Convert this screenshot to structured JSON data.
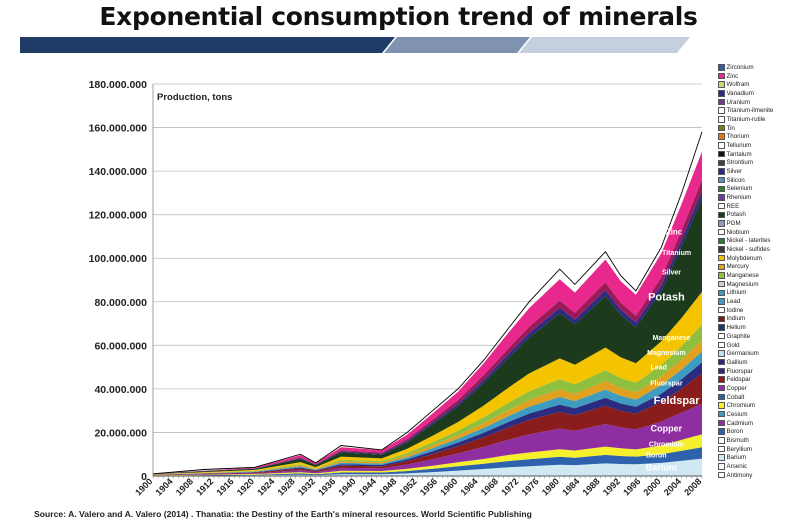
{
  "page_title": "Exponential consumption trend of minerals",
  "source_text": "Source: A. Valero and A. Valero (2014) . Thanatia: the Destiny of the Earth's mineral resources. World Scientific Publishing",
  "banner_colors": [
    "#1f3b66",
    "#7f93b0",
    "#c5d0df"
  ],
  "chart_data": {
    "type": "area",
    "stacked": true,
    "ylabel": "Production, tons",
    "ylim": [
      0,
      180000000
    ],
    "yticks": [
      0,
      20000000,
      40000000,
      60000000,
      80000000,
      100000000,
      120000000,
      140000000,
      160000000,
      180000000
    ],
    "ytick_labels": [
      "0",
      "20.000.000",
      "40.000.000",
      "60.000.000",
      "80.000.000",
      "100.000.000",
      "120.000.000",
      "140.000.000",
      "160.000.000",
      "180.000.000"
    ],
    "xlim": [
      1900,
      2008
    ],
    "xticks": [
      1900,
      1904,
      1908,
      1912,
      1916,
      1920,
      1924,
      1928,
      1932,
      1936,
      1940,
      1944,
      1948,
      1952,
      1956,
      1960,
      1964,
      1968,
      1972,
      1976,
      1980,
      1984,
      1988,
      1992,
      1996,
      2000,
      2004,
      2008
    ],
    "grid": "horizontal",
    "legend_position": "right",
    "x": [
      1900,
      1910,
      1920,
      1929,
      1932,
      1937,
      1945,
      1950,
      1955,
      1960,
      1965,
      1970,
      1974,
      1980,
      1983,
      1989,
      1992,
      1995,
      2000,
      2004,
      2008
    ],
    "total": [
      1000000,
      3000000,
      4000000,
      10000000,
      6000000,
      14000000,
      12000000,
      20000000,
      30000000,
      40000000,
      53000000,
      68000000,
      80000000,
      95000000,
      88000000,
      103000000,
      92000000,
      85000000,
      105000000,
      130000000,
      158000000
    ],
    "series": [
      {
        "name": "Barium",
        "color": "#cfe8f2",
        "values": [
          100000,
          200000,
          300000,
          600000,
          400000,
          800000,
          800000,
          1200000,
          1800000,
          2500000,
          3200000,
          4000000,
          4500000,
          5200000,
          5000000,
          5800000,
          5500000,
          5400000,
          6000000,
          7000000,
          8000000
        ]
      },
      {
        "name": "Boron",
        "color": "#2e62ad",
        "values": [
          100000,
          200000,
          300000,
          600000,
          400000,
          800000,
          800000,
          1100000,
          1500000,
          2000000,
          2400000,
          2900000,
          3200000,
          3600000,
          3400000,
          3900000,
          3700000,
          3500000,
          4000000,
          4600000,
          5200000
        ]
      },
      {
        "name": "Chromium",
        "color": "#f6ef2c",
        "values": [
          100000,
          200000,
          300000,
          600000,
          400000,
          800000,
          700000,
          1000000,
          1400000,
          1800000,
          2200000,
          2800000,
          3100000,
          3500000,
          3300000,
          3800000,
          3500000,
          3300000,
          4000000,
          5000000,
          6000000
        ]
      },
      {
        "name": "Copper",
        "color": "#8e2ea0",
        "values": [
          100000,
          300000,
          400000,
          900000,
          600000,
          1300000,
          1200000,
          2000000,
          3000000,
          4100000,
          5500000,
          7000000,
          8300000,
          9500000,
          9000000,
          10400000,
          9600000,
          9200000,
          11000000,
          12500000,
          14000000
        ]
      },
      {
        "name": "Feldspar",
        "color": "#8a1c1c",
        "values": [
          100000,
          200000,
          300000,
          700000,
          500000,
          1000000,
          1000000,
          1500000,
          2400000,
          3300000,
          4400000,
          5600000,
          6600000,
          7600000,
          7200000,
          8300000,
          7600000,
          7200000,
          9000000,
          11000000,
          14000000
        ]
      },
      {
        "name": "Fluorspar",
        "color": "#2b2b80",
        "values": [
          50000,
          100000,
          200000,
          500000,
          300000,
          700000,
          600000,
          900000,
          1300000,
          1700000,
          2100000,
          2600000,
          3000000,
          3400000,
          3200000,
          3700000,
          3400000,
          3200000,
          3800000,
          4400000,
          5000000
        ]
      },
      {
        "name": "Lead",
        "color": "#3d9cc0",
        "values": [
          50000,
          100000,
          200000,
          500000,
          300000,
          700000,
          600000,
          900000,
          1300000,
          1700000,
          2200000,
          2700000,
          3100000,
          3500000,
          3300000,
          3800000,
          3500000,
          3300000,
          3900000,
          4400000,
          5000000
        ]
      },
      {
        "name": "Magnesium",
        "color": "#e0a020",
        "values": [
          50000,
          100000,
          200000,
          500000,
          300000,
          700000,
          600000,
          900000,
          1300000,
          1700000,
          2200000,
          2700000,
          3100000,
          3600000,
          3400000,
          3900000,
          3600000,
          3400000,
          4000000,
          4600000,
          5200000
        ]
      },
      {
        "name": "Manganese",
        "color": "#8fbf3f",
        "values": [
          50000,
          100000,
          200000,
          500000,
          300000,
          700000,
          600000,
          1000000,
          1500000,
          2000000,
          2700000,
          3400000,
          4000000,
          4600000,
          4300000,
          5000000,
          4600000,
          4300000,
          5200000,
          6200000,
          7200000
        ]
      },
      {
        "name": "Molybdenum",
        "color": "#f5c400",
        "values": [
          100000,
          300000,
          400000,
          1000000,
          600000,
          1400000,
          1200000,
          2000000,
          3000000,
          4000000,
          5400000,
          7000000,
          8200000,
          9500000,
          9000000,
          10400000,
          9500000,
          9000000,
          11000000,
          13000000,
          15000000
        ]
      },
      {
        "name": "Potash",
        "color": "#1c3a1c",
        "values": [
          100000,
          400000,
          500000,
          1500000,
          900000,
          2000000,
          1700000,
          3000000,
          5200000,
          7200000,
          10200000,
          13700000,
          16400000,
          20800000,
          18500000,
          23800000,
          19500000,
          16500000,
          23000000,
          33000000,
          43000000
        ]
      },
      {
        "name": "Silver",
        "color": "#2b2b80",
        "values": [
          50000,
          100000,
          100000,
          300000,
          200000,
          400000,
          400000,
          600000,
          900000,
          1200000,
          1500000,
          1800000,
          2100000,
          2400000,
          2200000,
          2500000,
          2300000,
          2200000,
          2600000,
          3000000,
          3400000
        ]
      },
      {
        "name": "Titanium",
        "color": "#9b1b5a",
        "values": [
          50000,
          100000,
          200000,
          400000,
          300000,
          600000,
          600000,
          900000,
          1300000,
          1700000,
          2200000,
          2600000,
          3000000,
          3400000,
          3200000,
          3600000,
          3300000,
          3100000,
          3700000,
          4300000,
          5000000
        ]
      },
      {
        "name": "Zinc",
        "color": "#e8288c",
        "values": [
          50000,
          100000,
          300000,
          1000000,
          500000,
          1300000,
          1100000,
          2000000,
          2800000,
          3800000,
          5400000,
          7200000,
          8500000,
          9700000,
          9200000,
          10500000,
          9900000,
          9600000,
          11000000,
          12000000,
          13000000
        ]
      }
    ],
    "annotations": [
      {
        "text": "Zinc",
        "x": 2002.5,
        "y": 111000000,
        "size": 8
      },
      {
        "text": "Titanium",
        "x": 2003,
        "y": 101500000,
        "size": 7
      },
      {
        "text": "Silver",
        "x": 2002,
        "y": 92500000,
        "size": 7
      },
      {
        "text": "Potash",
        "x": 2001,
        "y": 80500000,
        "size": 11
      },
      {
        "text": "Manganese",
        "x": 2002,
        "y": 62500000,
        "size": 7
      },
      {
        "text": "Magnesium",
        "x": 2001,
        "y": 55500000,
        "size": 7
      },
      {
        "text": "Lead",
        "x": 1999.5,
        "y": 49000000,
        "size": 7
      },
      {
        "text": "Fluorspar",
        "x": 2001,
        "y": 41500000,
        "size": 7
      },
      {
        "text": "Feldspar",
        "x": 2003,
        "y": 33000000,
        "size": 11
      },
      {
        "text": "Copper",
        "x": 2001,
        "y": 20500000,
        "size": 9
      },
      {
        "text": "Chromium",
        "x": 2001,
        "y": 13500000,
        "size": 7
      },
      {
        "text": "Boron",
        "x": 1999,
        "y": 8500000,
        "size": 7
      },
      {
        "text": "Barium",
        "x": 2000,
        "y": 2500000,
        "size": 9
      }
    ],
    "legend": [
      {
        "name": "Zirconium",
        "color": "#2f5f9e"
      },
      {
        "name": "Zinc",
        "color": "#e8288c"
      },
      {
        "name": "Wolfram",
        "color": "#c8d96f"
      },
      {
        "name": "Vanadium",
        "color": "#2b2b80"
      },
      {
        "name": "Uranium",
        "color": "#6d3d8a"
      },
      {
        "name": "Titanium-ilmenite",
        "color": "#ffffff"
      },
      {
        "name": "Titanium-rutile",
        "color": "#ffffff"
      },
      {
        "name": "Tin",
        "color": "#7a7a20"
      },
      {
        "name": "Thorium",
        "color": "#e07a20"
      },
      {
        "name": "Tellurium",
        "color": "#ffffff"
      },
      {
        "name": "Tantalum",
        "color": "#111111"
      },
      {
        "name": "Strontium",
        "color": "#444444"
      },
      {
        "name": "Silver",
        "color": "#2b2b80"
      },
      {
        "name": "Silicon",
        "color": "#5a8fc0"
      },
      {
        "name": "Selenium",
        "color": "#2e7d32"
      },
      {
        "name": "Rhenium",
        "color": "#6a3d9a"
      },
      {
        "name": "REE",
        "color": "#ffffff"
      },
      {
        "name": "Potash",
        "color": "#1c3a1c"
      },
      {
        "name": "PGM",
        "color": "#8aa0b8"
      },
      {
        "name": "Niobium",
        "color": "#ffffff"
      },
      {
        "name": "Nickel - laterites",
        "color": "#2e7d32"
      },
      {
        "name": "Nickel - sulfides",
        "color": "#3a3a3a"
      },
      {
        "name": "Molybdenum",
        "color": "#f5c400"
      },
      {
        "name": "Mercury",
        "color": "#e0a020"
      },
      {
        "name": "Manganese",
        "color": "#8fbf3f"
      },
      {
        "name": "Magnesium",
        "color": "#d0d0d0"
      },
      {
        "name": "Lithium",
        "color": "#3d9cc0"
      },
      {
        "name": "Lead",
        "color": "#3d9cc0"
      },
      {
        "name": "Iodine",
        "color": "#ffffff"
      },
      {
        "name": "Indium",
        "color": "#7a1c1c"
      },
      {
        "name": "Helium",
        "color": "#1f3b66"
      },
      {
        "name": "Graphite",
        "color": "#ffffff"
      },
      {
        "name": "Gold",
        "color": "#ffffff"
      },
      {
        "name": "Germanium",
        "color": "#bfe0ea"
      },
      {
        "name": "Gallium",
        "color": "#2b2b80"
      },
      {
        "name": "Fluorspar",
        "color": "#2b2b80"
      },
      {
        "name": "Feldspar",
        "color": "#8a1c1c"
      },
      {
        "name": "Copper",
        "color": "#8e2ea0"
      },
      {
        "name": "Cobalt",
        "color": "#2f5f9e"
      },
      {
        "name": "Chromium",
        "color": "#f6ef2c"
      },
      {
        "name": "Cesium",
        "color": "#3d9cc0"
      },
      {
        "name": "Cadmium",
        "color": "#8e2ea0"
      },
      {
        "name": "Boron",
        "color": "#2e62ad"
      },
      {
        "name": "Bismuth",
        "color": "#ffffff"
      },
      {
        "name": "Beryllium",
        "color": "#ffffff"
      },
      {
        "name": "Barium",
        "color": "#cfe8f2"
      },
      {
        "name": "Arsenic",
        "color": "#ffffff"
      },
      {
        "name": "Antimony",
        "color": "#ffffff"
      }
    ]
  }
}
